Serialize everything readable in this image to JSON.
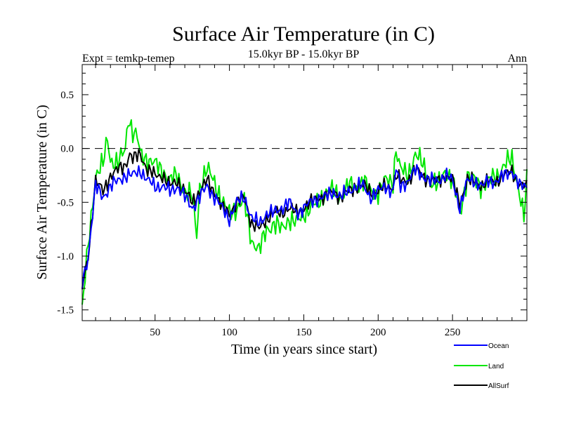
{
  "chart_data": {
    "type": "line",
    "title": "Surface Air Temperature (in C)",
    "subtitle": "15.0kyr BP - 15.0kyr BP",
    "left_note": "Expt = temkp-temep",
    "right_note": "Ann",
    "xlabel": "Time (in years since start)",
    "ylabel": "Surface Air Temperature (in C)",
    "xlim": [
      1,
      300
    ],
    "ylim": [
      -1.6,
      0.78
    ],
    "xticks": [
      50,
      100,
      150,
      200,
      250
    ],
    "yticks": [
      -1.5,
      -1.0,
      -0.5,
      0.0,
      0.5
    ],
    "ytick_labels": [
      "-1.5",
      "-1.0",
      "-0.5",
      "0.0",
      "0.5"
    ],
    "reference_line": 0.0,
    "legend_position": "bottom-right",
    "series": [
      {
        "name": "AllSurf",
        "color": "#000000",
        "keyframes": [
          [
            1,
            -1.3
          ],
          [
            5,
            -1.0
          ],
          [
            10,
            -0.3
          ],
          [
            15,
            -0.4
          ],
          [
            20,
            -0.25
          ],
          [
            25,
            -0.2
          ],
          [
            30,
            -0.15
          ],
          [
            33,
            -0.05
          ],
          [
            35,
            -0.1
          ],
          [
            40,
            -0.05
          ],
          [
            45,
            -0.2
          ],
          [
            50,
            -0.25
          ],
          [
            55,
            -0.25
          ],
          [
            60,
            -0.35
          ],
          [
            65,
            -0.3
          ],
          [
            70,
            -0.4
          ],
          [
            75,
            -0.5
          ],
          [
            80,
            -0.4
          ],
          [
            85,
            -0.3
          ],
          [
            90,
            -0.4
          ],
          [
            95,
            -0.55
          ],
          [
            100,
            -0.6
          ],
          [
            105,
            -0.5
          ],
          [
            110,
            -0.45
          ],
          [
            115,
            -0.7
          ],
          [
            120,
            -0.75
          ],
          [
            125,
            -0.65
          ],
          [
            130,
            -0.6
          ],
          [
            135,
            -0.6
          ],
          [
            140,
            -0.55
          ],
          [
            145,
            -0.6
          ],
          [
            150,
            -0.55
          ],
          [
            155,
            -0.5
          ],
          [
            160,
            -0.45
          ],
          [
            165,
            -0.45
          ],
          [
            170,
            -0.4
          ],
          [
            175,
            -0.45
          ],
          [
            180,
            -0.4
          ],
          [
            185,
            -0.35
          ],
          [
            190,
            -0.35
          ],
          [
            195,
            -0.4
          ],
          [
            200,
            -0.4
          ],
          [
            205,
            -0.35
          ],
          [
            210,
            -0.35
          ],
          [
            212,
            -0.25
          ],
          [
            215,
            -0.3
          ],
          [
            220,
            -0.3
          ],
          [
            225,
            -0.2
          ],
          [
            230,
            -0.25
          ],
          [
            235,
            -0.3
          ],
          [
            240,
            -0.3
          ],
          [
            245,
            -0.25
          ],
          [
            250,
            -0.3
          ],
          [
            255,
            -0.5
          ],
          [
            260,
            -0.3
          ],
          [
            265,
            -0.3
          ],
          [
            270,
            -0.35
          ],
          [
            275,
            -0.3
          ],
          [
            280,
            -0.3
          ],
          [
            285,
            -0.25
          ],
          [
            290,
            -0.2
          ],
          [
            295,
            -0.35
          ],
          [
            300,
            -0.35
          ]
        ]
      },
      {
        "name": "Land",
        "color": "#00e600",
        "keyframes": [
          [
            1,
            -1.5
          ],
          [
            5,
            -0.9
          ],
          [
            10,
            -0.25
          ],
          [
            15,
            -0.15
          ],
          [
            18,
            0.1
          ],
          [
            20,
            -0.1
          ],
          [
            25,
            -0.15
          ],
          [
            30,
            0.0
          ],
          [
            32,
            0.3
          ],
          [
            35,
            0.15
          ],
          [
            38,
            0.1
          ],
          [
            40,
            -0.05
          ],
          [
            45,
            -0.1
          ],
          [
            50,
            -0.15
          ],
          [
            55,
            -0.2
          ],
          [
            60,
            -0.3
          ],
          [
            65,
            -0.25
          ],
          [
            70,
            -0.4
          ],
          [
            75,
            -0.45
          ],
          [
            78,
            -0.8
          ],
          [
            80,
            -0.35
          ],
          [
            85,
            -0.2
          ],
          [
            90,
            -0.3
          ],
          [
            95,
            -0.5
          ],
          [
            100,
            -0.6
          ],
          [
            105,
            -0.55
          ],
          [
            110,
            -0.5
          ],
          [
            115,
            -0.85
          ],
          [
            120,
            -0.95
          ],
          [
            125,
            -0.75
          ],
          [
            130,
            -0.7
          ],
          [
            135,
            -0.75
          ],
          [
            140,
            -0.65
          ],
          [
            145,
            -0.7
          ],
          [
            150,
            -0.6
          ],
          [
            155,
            -0.55
          ],
          [
            160,
            -0.5
          ],
          [
            165,
            -0.4
          ],
          [
            170,
            -0.4
          ],
          [
            175,
            -0.45
          ],
          [
            180,
            -0.35
          ],
          [
            185,
            -0.35
          ],
          [
            190,
            -0.3
          ],
          [
            195,
            -0.4
          ],
          [
            200,
            -0.4
          ],
          [
            205,
            -0.3
          ],
          [
            210,
            -0.3
          ],
          [
            212,
            0.0
          ],
          [
            215,
            -0.2
          ],
          [
            220,
            -0.25
          ],
          [
            225,
            -0.05
          ],
          [
            230,
            -0.15
          ],
          [
            235,
            -0.3
          ],
          [
            240,
            -0.35
          ],
          [
            245,
            -0.2
          ],
          [
            250,
            -0.3
          ],
          [
            255,
            -0.6
          ],
          [
            260,
            -0.25
          ],
          [
            265,
            -0.3
          ],
          [
            270,
            -0.35
          ],
          [
            275,
            -0.3
          ],
          [
            280,
            -0.25
          ],
          [
            285,
            -0.15
          ],
          [
            290,
            -0.1
          ],
          [
            295,
            -0.4
          ],
          [
            298,
            -0.65
          ],
          [
            300,
            -0.3
          ]
        ]
      },
      {
        "name": "Ocean",
        "color": "#0000ff",
        "keyframes": [
          [
            1,
            -1.25
          ],
          [
            5,
            -1.0
          ],
          [
            10,
            -0.35
          ],
          [
            15,
            -0.45
          ],
          [
            20,
            -0.35
          ],
          [
            25,
            -0.3
          ],
          [
            30,
            -0.25
          ],
          [
            35,
            -0.25
          ],
          [
            40,
            -0.2
          ],
          [
            45,
            -0.3
          ],
          [
            50,
            -0.35
          ],
          [
            55,
            -0.35
          ],
          [
            60,
            -0.4
          ],
          [
            65,
            -0.35
          ],
          [
            70,
            -0.45
          ],
          [
            75,
            -0.55
          ],
          [
            80,
            -0.45
          ],
          [
            85,
            -0.35
          ],
          [
            90,
            -0.45
          ],
          [
            95,
            -0.55
          ],
          [
            100,
            -0.65
          ],
          [
            105,
            -0.5
          ],
          [
            110,
            -0.45
          ],
          [
            115,
            -0.65
          ],
          [
            120,
            -0.7
          ],
          [
            125,
            -0.6
          ],
          [
            130,
            -0.6
          ],
          [
            135,
            -0.55
          ],
          [
            140,
            -0.5
          ],
          [
            145,
            -0.6
          ],
          [
            150,
            -0.55
          ],
          [
            155,
            -0.5
          ],
          [
            160,
            -0.45
          ],
          [
            165,
            -0.45
          ],
          [
            170,
            -0.4
          ],
          [
            175,
            -0.45
          ],
          [
            180,
            -0.4
          ],
          [
            185,
            -0.35
          ],
          [
            190,
            -0.35
          ],
          [
            195,
            -0.45
          ],
          [
            200,
            -0.4
          ],
          [
            205,
            -0.35
          ],
          [
            210,
            -0.4
          ],
          [
            212,
            -0.2
          ],
          [
            215,
            -0.35
          ],
          [
            220,
            -0.3
          ],
          [
            225,
            -0.2
          ],
          [
            230,
            -0.25
          ],
          [
            235,
            -0.3
          ],
          [
            240,
            -0.3
          ],
          [
            245,
            -0.25
          ],
          [
            250,
            -0.3
          ],
          [
            255,
            -0.55
          ],
          [
            260,
            -0.3
          ],
          [
            265,
            -0.3
          ],
          [
            270,
            -0.35
          ],
          [
            275,
            -0.3
          ],
          [
            280,
            -0.3
          ],
          [
            285,
            -0.25
          ],
          [
            290,
            -0.2
          ],
          [
            295,
            -0.35
          ],
          [
            300,
            -0.35
          ]
        ]
      }
    ]
  }
}
